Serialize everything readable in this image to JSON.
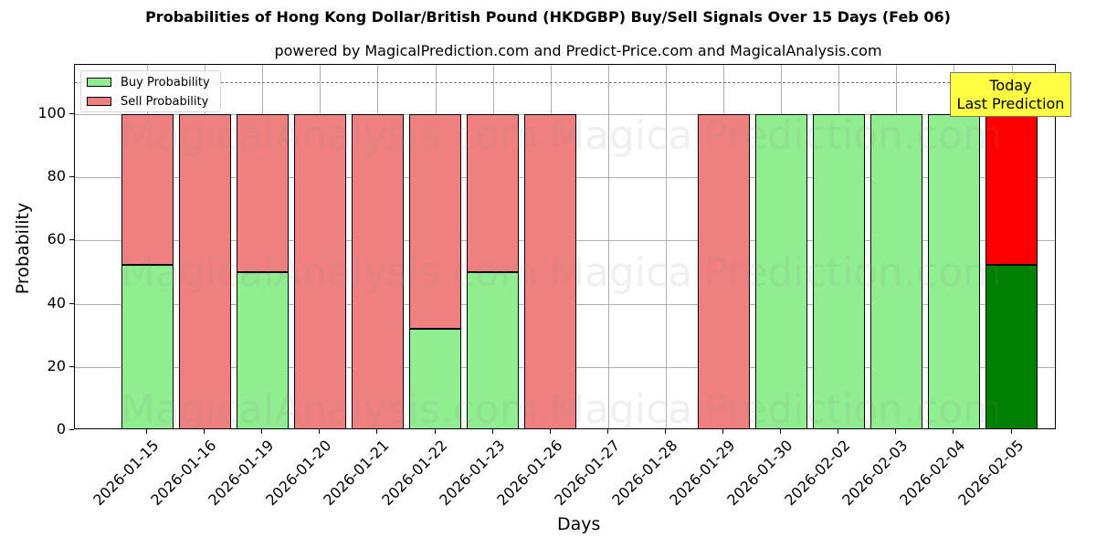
{
  "chart_data": {
    "type": "bar",
    "stacked": true,
    "title": "Probabilities of Hong Kong Dollar/British Pound (HKDGBP) Buy/Sell Signals Over 15 Days (Feb 06)",
    "subtitle": "powered by MagicalPrediction.com and Predict-Price.com and MagicalAnalysis.com",
    "xlabel": "Days",
    "ylabel": "Probability",
    "ylim": [
      0,
      115.6
    ],
    "yticks": [
      0,
      20,
      40,
      60,
      80,
      100
    ],
    "grid": true,
    "legend_position": "upper left",
    "reference_line": {
      "y": 110,
      "style": "dashed",
      "color": "#808080"
    },
    "categories": [
      "2026-01-15",
      "2026-01-16",
      "2026-01-19",
      "2026-01-20",
      "2026-01-21",
      "2026-01-22",
      "2026-01-23",
      "2026-01-26",
      "2026-01-27",
      "2026-01-28",
      "2026-01-29",
      "2026-01-30",
      "2026-02-02",
      "2026-02-03",
      "2026-02-04",
      "2026-02-05"
    ],
    "series": [
      {
        "name": "Buy Probability",
        "color": "#90ee90",
        "values": [
          52.2,
          0,
          50,
          0,
          0,
          32.2,
          50,
          0,
          0,
          0,
          0,
          100,
          100,
          100,
          100,
          52.2
        ]
      },
      {
        "name": "Sell Probability",
        "color": "#f08080",
        "values": [
          47.8,
          100,
          50,
          100,
          100,
          67.8,
          50,
          100,
          0,
          0,
          100,
          0,
          0,
          0,
          0,
          47.8
        ]
      }
    ],
    "highlight": {
      "category": "2026-02-05",
      "buy_color": "#008000",
      "sell_color": "#ff0000"
    },
    "annotations": [
      {
        "text": "Today\nLast Prediction",
        "line1": "Today",
        "line2": "Last Prediction",
        "x": "2026-02-05",
        "background": "#ffff44"
      }
    ],
    "watermarks": [
      "MagicalAnalysis.com",
      "MagicalPrediction.com"
    ]
  },
  "legend": {
    "buy_label": "Buy Probability",
    "sell_label": "Sell Probability"
  }
}
